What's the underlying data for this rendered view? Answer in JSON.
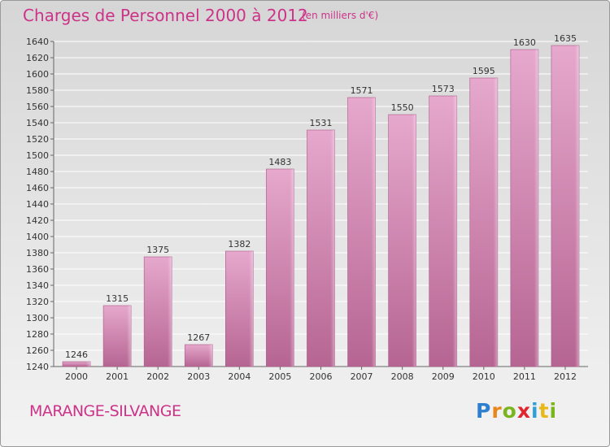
{
  "header": {
    "title": "Charges de Personnel 2000 à 2012",
    "subtitle": "(en milliers d'€)"
  },
  "footer": {
    "location": "MARANGE-SILVANGE",
    "logo": {
      "letters": [
        "P",
        "r",
        "o",
        "x",
        "i",
        "t",
        "i"
      ],
      "colors": [
        "#2f7fd0",
        "#e8861a",
        "#7ab51d",
        "#e0262e",
        "#2f9fd8",
        "#e8b81a",
        "#7ab51d"
      ]
    }
  },
  "chart_data": {
    "type": "bar",
    "categories": [
      "2000",
      "2001",
      "2002",
      "2003",
      "2004",
      "2005",
      "2006",
      "2007",
      "2008",
      "2009",
      "2010",
      "2011",
      "2012"
    ],
    "values": [
      1246,
      1315,
      1375,
      1267,
      1382,
      1483,
      1531,
      1571,
      1550,
      1573,
      1595,
      1630,
      1635
    ],
    "title": "Charges de Personnel 2000 à 2012",
    "xlabel": "",
    "ylabel": "",
    "ylim": [
      1240,
      1640
    ],
    "yticks": [
      1240,
      1260,
      1280,
      1300,
      1320,
      1340,
      1360,
      1380,
      1400,
      1420,
      1440,
      1460,
      1480,
      1500,
      1520,
      1540,
      1560,
      1580,
      1600,
      1620,
      1640
    ],
    "grid": true,
    "bar_color": "#d88fb9",
    "label_color": "#333333"
  }
}
